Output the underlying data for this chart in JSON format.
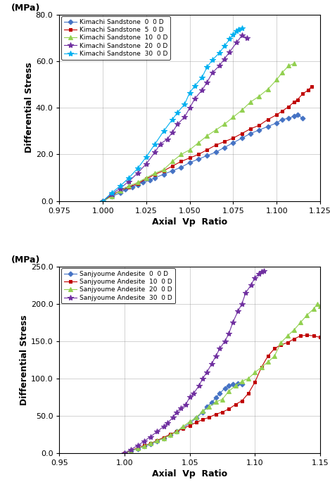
{
  "top": {
    "xlabel": "Axial  Vp  Ratio",
    "ylabel_top": "(MPa)",
    "ylabel_main": "Differential Stress",
    "xlim": [
      0.975,
      1.125
    ],
    "ylim": [
      0.0,
      80.0
    ],
    "xticks": [
      0.975,
      1.0,
      1.025,
      1.05,
      1.075,
      1.1,
      1.125
    ],
    "yticks": [
      0.0,
      20.0,
      40.0,
      60.0,
      80.0
    ],
    "series": [
      {
        "label": "Kimachi Sandstone  0  0 D",
        "color": "#4472C4",
        "marker": "D",
        "markersize": 3.5,
        "x": [
          1.0,
          1.005,
          1.01,
          1.013,
          1.017,
          1.02,
          1.023,
          1.027,
          1.03,
          1.035,
          1.04,
          1.045,
          1.05,
          1.055,
          1.06,
          1.065,
          1.07,
          1.075,
          1.08,
          1.085,
          1.09,
          1.095,
          1.1,
          1.103,
          1.107,
          1.11,
          1.112,
          1.115
        ],
        "y": [
          0.0,
          2.0,
          3.5,
          5.0,
          6.0,
          7.0,
          8.0,
          9.0,
          10.0,
          11.5,
          13.0,
          14.5,
          16.5,
          18.0,
          19.5,
          21.0,
          23.0,
          25.0,
          27.0,
          29.0,
          30.5,
          32.0,
          33.5,
          35.0,
          35.5,
          36.5,
          37.0,
          35.5
        ]
      },
      {
        "label": "Kimachi Sandstone  5  0 D",
        "color": "#C00000",
        "marker": "s",
        "markersize": 3.5,
        "x": [
          1.0,
          1.005,
          1.01,
          1.015,
          1.02,
          1.025,
          1.03,
          1.035,
          1.04,
          1.045,
          1.05,
          1.055,
          1.06,
          1.065,
          1.07,
          1.075,
          1.08,
          1.085,
          1.09,
          1.095,
          1.1,
          1.103,
          1.107,
          1.11,
          1.112,
          1.115,
          1.118,
          1.12
        ],
        "y": [
          0.0,
          2.5,
          4.5,
          6.0,
          7.5,
          9.5,
          11.5,
          13.0,
          15.0,
          17.0,
          18.5,
          20.0,
          22.0,
          24.0,
          25.5,
          27.0,
          29.0,
          31.0,
          32.5,
          35.0,
          37.0,
          38.5,
          40.5,
          42.5,
          43.5,
          46.0,
          47.5,
          49.0
        ]
      },
      {
        "label": "Kimachi Sandstone  10  0 D",
        "color": "#92D050",
        "marker": "^",
        "markersize": 4,
        "x": [
          1.0,
          1.005,
          1.01,
          1.015,
          1.02,
          1.025,
          1.03,
          1.035,
          1.04,
          1.045,
          1.05,
          1.055,
          1.06,
          1.065,
          1.07,
          1.075,
          1.08,
          1.085,
          1.09,
          1.095,
          1.1,
          1.103,
          1.107,
          1.11
        ],
        "y": [
          0.0,
          2.0,
          4.5,
          6.5,
          8.0,
          10.0,
          12.0,
          13.5,
          17.0,
          20.0,
          22.0,
          25.0,
          28.0,
          30.5,
          33.0,
          36.0,
          39.0,
          42.5,
          45.0,
          48.0,
          52.0,
          55.0,
          58.0,
          59.0
        ]
      },
      {
        "label": "Kimachi Sandstone  20  0 D",
        "color": "#7030A0",
        "marker": "*",
        "markersize": 6,
        "x": [
          1.0,
          1.005,
          1.01,
          1.015,
          1.02,
          1.025,
          1.03,
          1.033,
          1.037,
          1.04,
          1.043,
          1.047,
          1.05,
          1.053,
          1.057,
          1.06,
          1.063,
          1.067,
          1.07,
          1.073,
          1.077,
          1.08,
          1.083
        ],
        "y": [
          0.0,
          3.0,
          5.5,
          8.5,
          12.0,
          16.0,
          21.0,
          24.5,
          26.5,
          29.5,
          33.0,
          36.0,
          40.0,
          44.0,
          47.5,
          51.0,
          55.0,
          58.0,
          61.0,
          64.0,
          68.0,
          71.0,
          70.0
        ]
      },
      {
        "label": "Kimachi Sandstone  30  0 D",
        "color": "#00B0F0",
        "marker": "*",
        "markersize": 6,
        "x": [
          1.0,
          1.005,
          1.01,
          1.015,
          1.02,
          1.025,
          1.03,
          1.035,
          1.04,
          1.043,
          1.047,
          1.05,
          1.053,
          1.057,
          1.06,
          1.063,
          1.067,
          1.07,
          1.073,
          1.075,
          1.077,
          1.078,
          1.08
        ],
        "y": [
          0.0,
          3.5,
          6.5,
          10.0,
          14.0,
          19.0,
          24.5,
          30.0,
          35.0,
          38.0,
          41.5,
          46.5,
          49.5,
          53.0,
          57.5,
          60.5,
          63.5,
          66.5,
          69.5,
          71.5,
          73.0,
          73.5,
          74.0
        ]
      }
    ]
  },
  "bottom": {
    "xlabel": "Axial  Vp  Ratio",
    "ylabel_top": "(MPa)",
    "ylabel_main": "Differential Stress",
    "xlim": [
      0.95,
      1.15
    ],
    "ylim": [
      0.0,
      250.0
    ],
    "xticks": [
      0.95,
      1.0,
      1.05,
      1.1,
      1.15
    ],
    "yticks": [
      0.0,
      50.0,
      100.0,
      150.0,
      200.0,
      250.0
    ],
    "series": [
      {
        "label": "Sanjyoume Andesite  0  0 D",
        "color": "#4472C4",
        "marker": "D",
        "markersize": 3.5,
        "x": [
          1.0,
          1.005,
          1.01,
          1.015,
          1.02,
          1.025,
          1.03,
          1.035,
          1.04,
          1.045,
          1.05,
          1.055,
          1.06,
          1.063,
          1.067,
          1.07,
          1.073,
          1.077,
          1.08,
          1.083,
          1.087,
          1.09
        ],
        "y": [
          0.0,
          3.0,
          6.0,
          9.0,
          12.0,
          16.0,
          20.0,
          24.0,
          29.0,
          34.0,
          40.0,
          47.0,
          55.0,
          62.0,
          68.0,
          74.0,
          80.0,
          87.0,
          90.0,
          92.0,
          93.0,
          92.0
        ]
      },
      {
        "label": "Sanjyoume Andesite  10  0 D",
        "color": "#C00000",
        "marker": "s",
        "markersize": 3.5,
        "x": [
          1.0,
          1.005,
          1.01,
          1.015,
          1.02,
          1.025,
          1.03,
          1.035,
          1.04,
          1.045,
          1.05,
          1.055,
          1.06,
          1.065,
          1.07,
          1.075,
          1.08,
          1.085,
          1.09,
          1.095,
          1.1,
          1.105,
          1.11,
          1.115,
          1.12,
          1.125,
          1.13,
          1.135,
          1.14,
          1.145,
          1.15
        ],
        "y": [
          0.0,
          3.5,
          7.0,
          10.0,
          13.0,
          17.0,
          21.0,
          25.0,
          29.0,
          33.0,
          37.0,
          41.0,
          45.0,
          48.0,
          52.0,
          55.0,
          59.0,
          65.0,
          70.0,
          80.0,
          95.0,
          115.0,
          130.0,
          140.0,
          145.0,
          148.0,
          153.0,
          157.0,
          158.0,
          157.0,
          155.0
        ]
      },
      {
        "label": "Sanjyoume Andesite  20  0 D",
        "color": "#92D050",
        "marker": "^",
        "markersize": 4,
        "x": [
          1.0,
          1.005,
          1.01,
          1.015,
          1.02,
          1.025,
          1.03,
          1.035,
          1.04,
          1.045,
          1.05,
          1.055,
          1.06,
          1.065,
          1.07,
          1.075,
          1.08,
          1.085,
          1.09,
          1.095,
          1.1,
          1.105,
          1.11,
          1.115,
          1.12,
          1.125,
          1.13,
          1.135,
          1.14,
          1.145,
          1.148,
          1.15
        ],
        "y": [
          0.0,
          3.0,
          6.5,
          9.5,
          13.0,
          16.5,
          20.0,
          24.0,
          29.0,
          36.0,
          42.0,
          48.0,
          56.0,
          62.0,
          68.5,
          72.0,
          83.0,
          90.0,
          96.0,
          100.0,
          108.0,
          115.0,
          122.0,
          130.0,
          148.0,
          157.0,
          165.0,
          175.0,
          185.0,
          193.0,
          200.0,
          197.0
        ]
      },
      {
        "label": "Sanjyoume Andesite  30  0 D",
        "color": "#7030A0",
        "marker": "*",
        "markersize": 6,
        "x": [
          1.0,
          1.005,
          1.01,
          1.015,
          1.02,
          1.025,
          1.03,
          1.033,
          1.037,
          1.04,
          1.043,
          1.047,
          1.05,
          1.053,
          1.057,
          1.06,
          1.063,
          1.067,
          1.07,
          1.073,
          1.077,
          1.08,
          1.083,
          1.087,
          1.09,
          1.093,
          1.097,
          1.1,
          1.103,
          1.105,
          1.107
        ],
        "y": [
          0.0,
          5.0,
          10.0,
          16.0,
          22.0,
          29.0,
          35.5,
          40.0,
          48.0,
          55.0,
          60.0,
          65.0,
          75.0,
          80.0,
          90.0,
          100.0,
          108.0,
          120.0,
          130.0,
          140.0,
          150.0,
          160.0,
          175.0,
          190.0,
          200.0,
          215.0,
          225.0,
          235.0,
          240.0,
          243.0,
          244.0
        ]
      }
    ]
  }
}
